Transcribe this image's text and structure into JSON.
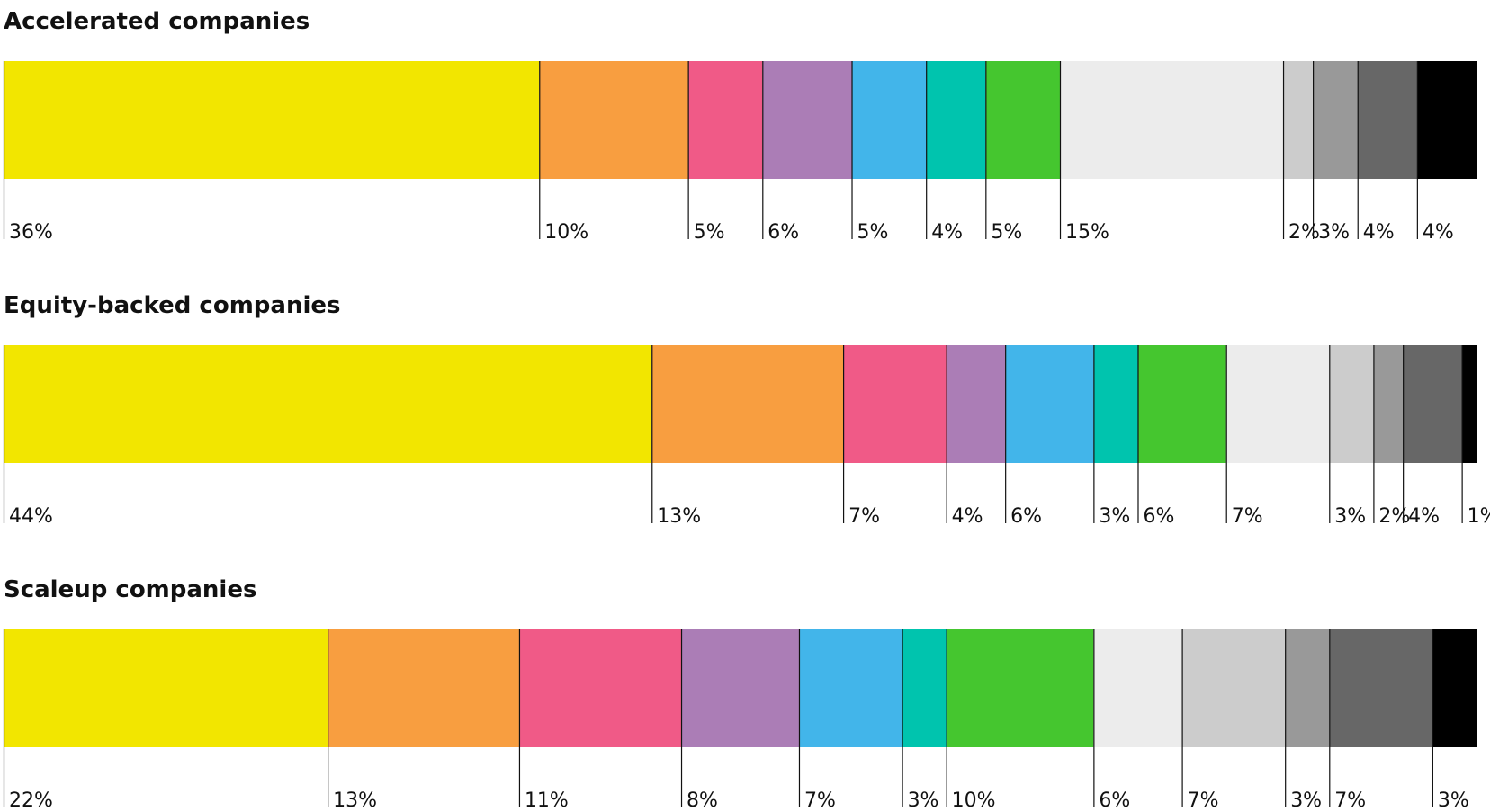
{
  "chart_data": [
    {
      "type": "stacked-bar",
      "title": "Accelerated companies",
      "values": [
        36,
        10,
        5,
        6,
        5,
        4,
        5,
        15,
        2,
        3,
        4,
        4
      ],
      "value_labels": [
        "36%",
        "10%",
        "5%",
        "6%",
        "5%",
        "4%",
        "5%",
        "15%",
        "2%",
        "3%",
        "4%",
        "4%"
      ],
      "colors": [
        "#f2e600",
        "#f89e40",
        "#f05a87",
        "#ab7db6",
        "#42b5ea",
        "#00c4ae",
        "#45c62f",
        "#ececec",
        "#cccccc",
        "#999999",
        "#676767",
        "#000000"
      ]
    },
    {
      "type": "stacked-bar",
      "title": "Equity-backed companies",
      "values": [
        44,
        13,
        7,
        4,
        6,
        3,
        6,
        7,
        3,
        2,
        4,
        1
      ],
      "value_labels": [
        "44%",
        "13%",
        "7%",
        "4%",
        "6%",
        "3%",
        "6%",
        "7%",
        "3%",
        "2%",
        "4%",
        "1%"
      ],
      "colors": [
        "#f2e600",
        "#f89e40",
        "#f05a87",
        "#ab7db6",
        "#42b5ea",
        "#00c4ae",
        "#45c62f",
        "#ececec",
        "#cccccc",
        "#999999",
        "#676767",
        "#000000"
      ]
    },
    {
      "type": "stacked-bar",
      "title": "Scaleup companies",
      "values": [
        22,
        13,
        11,
        8,
        7,
        3,
        10,
        6,
        7,
        3,
        7,
        3
      ],
      "value_labels": [
        "22%",
        "13%",
        "11%",
        "8%",
        "7%",
        "3%",
        "10%",
        "6%",
        "7%",
        "3%",
        "7%",
        "3%"
      ],
      "colors": [
        "#f2e600",
        "#f89e40",
        "#f05a87",
        "#ab7db6",
        "#42b5ea",
        "#00c4ae",
        "#45c62f",
        "#ececec",
        "#cccccc",
        "#999999",
        "#676767",
        "#000000"
      ]
    }
  ]
}
